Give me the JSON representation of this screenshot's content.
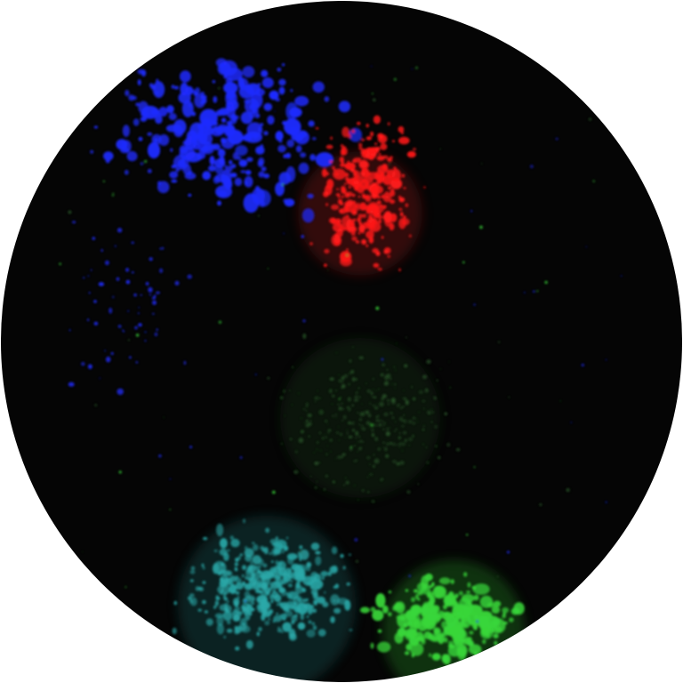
{
  "image": {
    "kind": "fluorescence-microscopy-field",
    "background_color": "#050505",
    "frame_color": "#ffffff",
    "channels": [
      {
        "name": "blue",
        "color": "#1f2cff",
        "region": "upper-left"
      },
      {
        "name": "red",
        "color": "#ff1a1a",
        "region": "upper-center"
      },
      {
        "name": "dim-green",
        "color": "#2a5a2a",
        "region": "center"
      },
      {
        "name": "cyan",
        "color": "#2aa8a8",
        "region": "lower-left"
      },
      {
        "name": "green",
        "color": "#39d63a",
        "region": "lower-center"
      }
    ]
  }
}
